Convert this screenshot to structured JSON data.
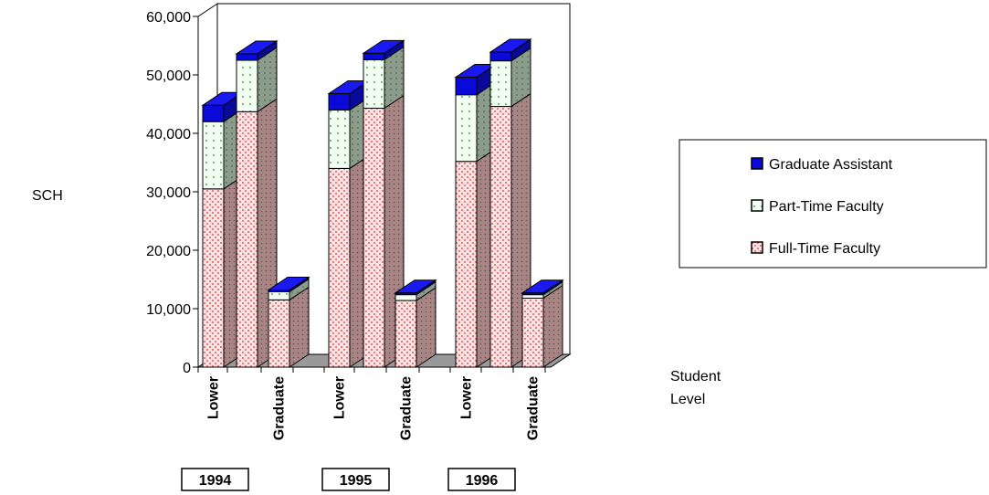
{
  "chart_data": {
    "type": "bar",
    "stacked": true,
    "three_d": true,
    "ylabel": "SCH",
    "xlabel": "Student Level",
    "xlabel_lines": [
      "Student",
      "Level"
    ],
    "ylim": [
      0,
      60000
    ],
    "yticks": [
      0,
      10000,
      20000,
      30000,
      40000,
      50000,
      60000
    ],
    "ytick_labels": [
      "0",
      "10,000",
      "20,000",
      "30,000",
      "40,000",
      "50,000",
      "60,000"
    ],
    "groups": [
      "1994",
      "1995",
      "1996"
    ],
    "categories": [
      {
        "group": "1994",
        "label": "Lower"
      },
      {
        "group": "1994",
        "label": ""
      },
      {
        "group": "1994",
        "label": "Graduate"
      },
      {
        "group": "1995",
        "label": "Lower"
      },
      {
        "group": "1995",
        "label": ""
      },
      {
        "group": "1995",
        "label": "Graduate"
      },
      {
        "group": "1996",
        "label": "Lower"
      },
      {
        "group": "1996",
        "label": ""
      },
      {
        "group": "1996",
        "label": "Graduate"
      }
    ],
    "series": [
      {
        "name": "Full-Time Faculty",
        "color": "#f4b6b6",
        "side_color": "#9a7b7b",
        "values": [
          30500,
          43700,
          11500,
          34000,
          44300,
          11400,
          35200,
          44600,
          11800
        ]
      },
      {
        "name": "Part-Time Faculty",
        "color": "#ecfcec",
        "side_color": "#8a9a8a",
        "values": [
          11500,
          8800,
          1400,
          10000,
          8300,
          1000,
          11400,
          7800,
          600
        ]
      },
      {
        "name": "Graduate Assistant",
        "color": "#0a0ad8",
        "side_color": "#0a0a9a",
        "values": [
          2800,
          1100,
          300,
          2800,
          1100,
          300,
          3000,
          1500,
          300
        ]
      }
    ],
    "legend": {
      "position": "right",
      "entries": [
        "Graduate Assistant",
        "Part-Time Faculty",
        "Full-Time Faculty"
      ]
    },
    "grid": false,
    "floor_color": "#999999"
  }
}
